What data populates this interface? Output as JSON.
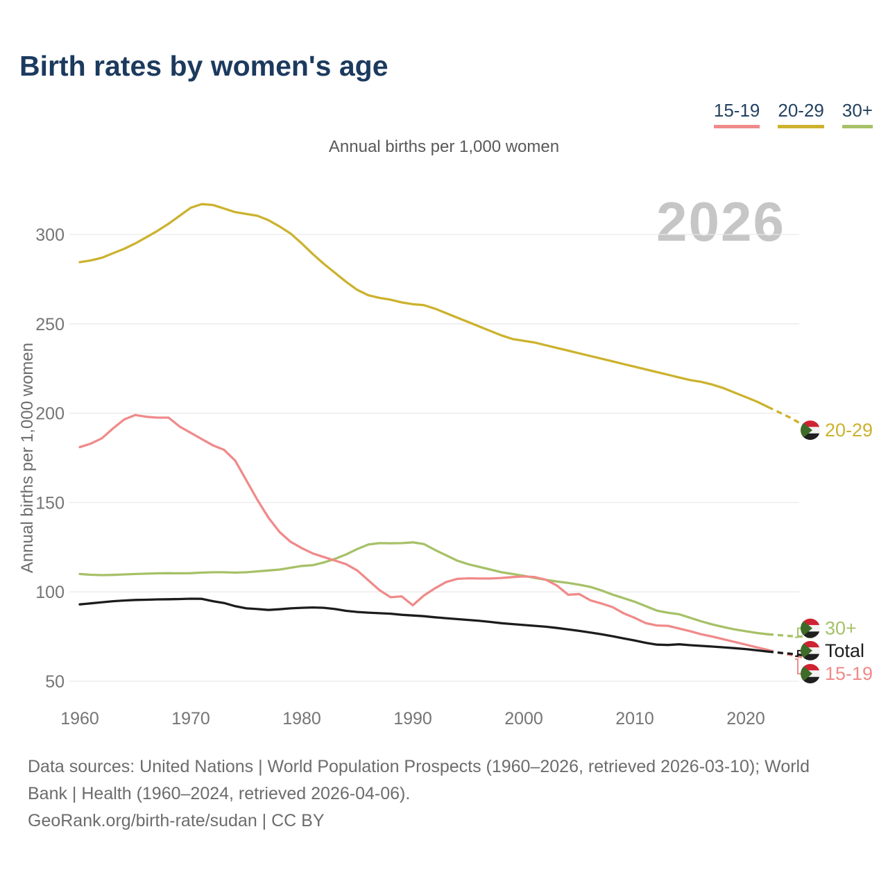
{
  "title": "Birth rates by women's age",
  "subtitle": "Annual births per 1,000 women",
  "watermark": "2026",
  "legend": [
    {
      "label": "15-19",
      "color": "#f08a8a"
    },
    {
      "label": "20-29",
      "color": "#ccb22e"
    },
    {
      "label": "30+",
      "color": "#a6c167"
    }
  ],
  "footer": {
    "line1": "Data sources: United Nations | World Population Prospects (1960–2026, retrieved 2026-03-10); World",
    "line2": "Bank | Health (1960–2024, retrieved 2026-04-06).",
    "line3": "GeoRank.org/birth-rate/sudan | CC BY"
  },
  "end_marker": {
    "icon": "sudan-flag-icon",
    "flag_colors": {
      "red": "#cf2233",
      "white": "#f2f2f2",
      "black": "#1f1f1f",
      "green": "#3e6b28"
    }
  },
  "chart_data": {
    "type": "line",
    "title": "Birth rates by women's age",
    "subtitle": "Annual births per 1,000 women",
    "ylabel": "Annual births per 1,000 women",
    "ylim": [
      50,
      317
    ],
    "y_ticks": [
      50,
      100,
      150,
      200,
      250,
      300
    ],
    "x_ticks": [
      1960,
      1970,
      1980,
      1990,
      2000,
      2010,
      2020
    ],
    "x": [
      1960,
      1961,
      1962,
      1963,
      1964,
      1965,
      1966,
      1967,
      1968,
      1969,
      1970,
      1971,
      1972,
      1973,
      1974,
      1975,
      1976,
      1977,
      1978,
      1979,
      1980,
      1981,
      1982,
      1983,
      1984,
      1985,
      1986,
      1987,
      1988,
      1989,
      1990,
      1991,
      1992,
      1993,
      1994,
      1995,
      1996,
      1997,
      1998,
      1999,
      2000,
      2001,
      2002,
      2003,
      2004,
      2005,
      2006,
      2007,
      2008,
      2009,
      2010,
      2011,
      2012,
      2013,
      2014,
      2015,
      2016,
      2017,
      2018,
      2019,
      2020,
      2021,
      2022,
      2023,
      2024,
      2025,
      2026
    ],
    "projection_from_year": 2022,
    "series": [
      {
        "name": "20-29",
        "color": "#ccb22e",
        "label_offset": 0,
        "values": [
          284.5,
          285.5,
          287,
          289.5,
          292,
          295,
          298.5,
          302,
          306,
          310.5,
          315,
          317,
          316.5,
          314.5,
          312.5,
          311.5,
          310.5,
          308,
          304.5,
          300.5,
          295,
          289,
          283.5,
          278.5,
          273.5,
          269,
          266,
          264.5,
          263.5,
          262,
          261,
          260.5,
          258.5,
          256,
          253.5,
          251,
          248.5,
          246,
          243.5,
          241.5,
          240.5,
          239.5,
          238,
          236.5,
          235,
          233.5,
          232,
          230.5,
          229,
          227.5,
          226,
          224.5,
          223,
          221.5,
          220,
          218.5,
          217.5,
          216,
          214,
          211.5,
          209,
          206.5,
          203.5,
          200.5,
          197.5,
          194,
          190.5
        ]
      },
      {
        "name": "30+",
        "color": "#a6c167",
        "label_offset": -13,
        "values": [
          110,
          109.6,
          109.4,
          109.5,
          109.8,
          110,
          110.2,
          110.4,
          110.5,
          110.4,
          110.5,
          110.8,
          111,
          111,
          110.8,
          111,
          111.5,
          112,
          112.5,
          113.5,
          114.5,
          115,
          116.5,
          118.5,
          121,
          124,
          126.5,
          127.3,
          127.2,
          127.3,
          127.7,
          126.8,
          123.5,
          120.5,
          117.5,
          115.5,
          114,
          112.5,
          111,
          110,
          109,
          107.8,
          106.8,
          105.8,
          105,
          104,
          102.8,
          100.8,
          98.5,
          96.5,
          94.5,
          92,
          89.5,
          88.3,
          87.5,
          85.5,
          83.5,
          81.8,
          80.3,
          79,
          78,
          77,
          76.3,
          75.8,
          75.3,
          75,
          74.6
        ]
      },
      {
        "name": "15-19",
        "color": "#f08a8a",
        "label_offset": 21,
        "values": [
          181,
          183,
          186,
          191.5,
          196.5,
          199,
          198,
          197.5,
          197.5,
          192.5,
          189,
          185.5,
          182,
          179.5,
          173.5,
          162.5,
          151.5,
          141.5,
          133.5,
          128,
          124.5,
          121.5,
          119.5,
          117.5,
          115.5,
          112,
          106.5,
          101,
          97,
          97.5,
          92.5,
          98,
          102,
          105.5,
          107.3,
          107.6,
          107.5,
          107.5,
          107.8,
          108.3,
          108.7,
          108.3,
          106.8,
          103.5,
          98.4,
          98.8,
          95.3,
          93.5,
          91.5,
          88,
          85.5,
          82.5,
          81.2,
          81,
          79.5,
          78,
          76.3,
          75,
          73.5,
          72,
          70.5,
          69,
          67.5,
          66,
          64.8,
          63.5,
          62.4
        ]
      },
      {
        "name": "Total",
        "color": "#1c1c1c",
        "label_offset": -8,
        "values": [
          93,
          93.6,
          94.2,
          94.8,
          95.2,
          95.5,
          95.6,
          95.8,
          95.9,
          96,
          96.2,
          96.1,
          94.8,
          93.8,
          92,
          90.8,
          90.4,
          89.9,
          90.3,
          90.8,
          91.1,
          91.3,
          91.1,
          90.4,
          89.4,
          88.8,
          88.4,
          88.1,
          87.8,
          87.2,
          86.8,
          86.4,
          85.8,
          85.3,
          84.8,
          84.3,
          83.8,
          83.2,
          82.5,
          82,
          81.5,
          81,
          80.5,
          79.8,
          79,
          78.2,
          77.3,
          76.3,
          75.2,
          74,
          72.8,
          71.5,
          70.5,
          70.3,
          70.7,
          70.2,
          69.8,
          69.4,
          69,
          68.5,
          68,
          67.3,
          66.6,
          66,
          65.4,
          64.7,
          64
        ]
      }
    ]
  }
}
